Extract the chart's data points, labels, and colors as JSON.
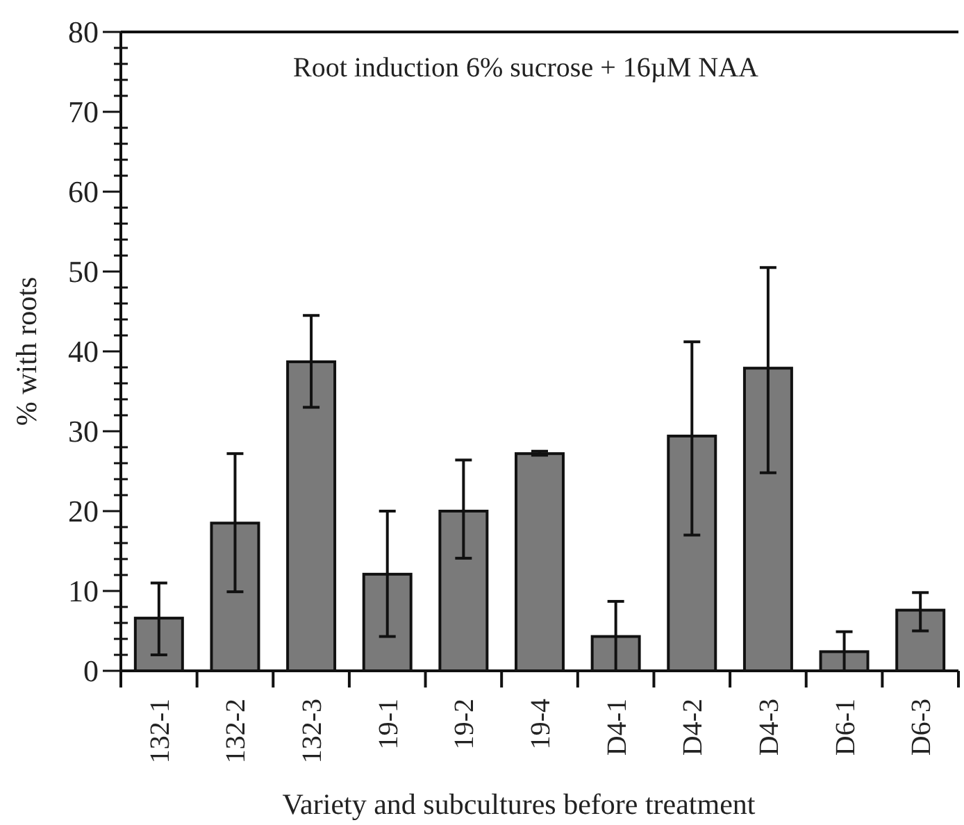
{
  "chart_data": {
    "type": "bar",
    "title": "Root induction 6% sucrose + 16µM NAA",
    "xlabel": "Variety and subcultures before treatment",
    "ylabel": "% with roots",
    "categories": [
      "132-1",
      "132-2",
      "132-3",
      "19-1",
      "19-2",
      "19-4",
      "D4-1",
      "D4-2",
      "D4-3",
      "D6-1",
      "D6-3"
    ],
    "values": [
      6.6,
      18.5,
      38.7,
      12.1,
      20,
      27.2,
      4.3,
      29.4,
      37.9,
      2.4,
      7.6
    ],
    "errors": [
      [
        2,
        11
      ],
      [
        9.9,
        27.2
      ],
      [
        33,
        44.5
      ],
      [
        4.3,
        20
      ],
      [
        14.1,
        26.4
      ],
      [
        27,
        27.5
      ],
      [
        0,
        8.7
      ],
      [
        17,
        41.2
      ],
      [
        24.8,
        50.5
      ],
      [
        0,
        4.9
      ],
      [
        5,
        9.8
      ]
    ],
    "color": "#7a7a7a",
    "ylim": [
      0,
      80
    ],
    "yticks": [
      0,
      {
        "value": 2,
        "label": null
      },
      {
        "value": 4,
        "label": null
      },
      {
        "value": 6,
        "label": null
      },
      {
        "value": 8,
        "label": null
      },
      10,
      {
        "value": 12,
        "label": null
      },
      {
        "value": 14,
        "label": null
      },
      {
        "value": 16,
        "label": null
      },
      {
        "value": 18,
        "label": null
      },
      20,
      {
        "value": 22,
        "label": null
      },
      {
        "value": 24,
        "label": null
      },
      {
        "value": 26,
        "label": null
      },
      {
        "value": 28,
        "label": null
      },
      30,
      {
        "value": 32,
        "label": null
      },
      {
        "value": 34,
        "label": null
      },
      {
        "value": 36,
        "label": null
      },
      {
        "value": 38,
        "label": null
      },
      40,
      {
        "value": 42,
        "label": null
      },
      {
        "value": 44,
        "label": null
      },
      {
        "value": 46,
        "label": null
      },
      {
        "value": 48,
        "label": null
      },
      50,
      {
        "value": 52,
        "label": null
      },
      {
        "value": 54,
        "label": null
      },
      {
        "value": 56,
        "label": null
      },
      {
        "value": 58,
        "label": null
      },
      60,
      {
        "value": 62,
        "label": null
      },
      {
        "value": 64,
        "label": null
      },
      {
        "value": 66,
        "label": null
      },
      {
        "value": 68,
        "label": null
      },
      70,
      {
        "value": 72,
        "label": null
      },
      {
        "value": 74,
        "label": null
      },
      {
        "value": 76,
        "label": null
      },
      {
        "value": 78,
        "label": null
      },
      80
    ],
    "grid": false
  }
}
